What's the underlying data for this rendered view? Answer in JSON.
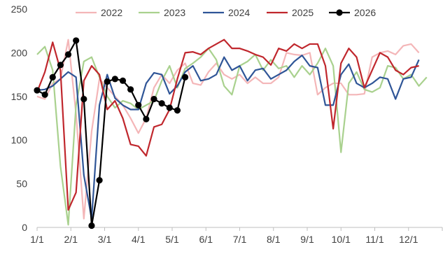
{
  "chart_data": {
    "type": "line",
    "title": "",
    "xlabel": "",
    "ylabel": "",
    "ylim": [
      0,
      250
    ],
    "yticks": [
      "0",
      "50",
      "100",
      "150",
      "200",
      "250"
    ],
    "xticks": [
      "1/1",
      "2/1",
      "3/1",
      "4/1",
      "5/1",
      "6/1",
      "7/1",
      "8/1",
      "9/1",
      "10/1",
      "11/1",
      "12/1"
    ],
    "xmax_week": 52,
    "grid": false,
    "legend": "top",
    "series": [
      {
        "name": "2022",
        "color": "#F4B6B8",
        "marker": false,
        "values": [
          150,
          147,
          165,
          170,
          215,
          130,
          10,
          110,
          170,
          160,
          150,
          140,
          125,
          108,
          125,
          160,
          175,
          165,
          180,
          188,
          165,
          163,
          178,
          188,
          175,
          170,
          175,
          165,
          172,
          165,
          165,
          172,
          200,
          198,
          197,
          200,
          152,
          160,
          165,
          165,
          152,
          152,
          153,
          195,
          200,
          202,
          198,
          208,
          210,
          200
        ]
      },
      {
        "name": "2023",
        "color": "#A9D18E",
        "marker": false,
        "values": [
          198,
          207,
          180,
          70,
          3,
          140,
          190,
          195,
          172,
          150,
          137,
          145,
          142,
          135,
          140,
          145,
          168,
          185,
          160,
          182,
          188,
          195,
          205,
          192,
          162,
          152,
          185,
          190,
          198,
          180,
          192,
          182,
          185,
          172,
          185,
          175,
          188,
          205,
          185,
          86,
          165,
          178,
          158,
          155,
          160,
          185,
          183,
          170,
          175,
          162,
          172
        ]
      },
      {
        "name": "2024",
        "color": "#2F5597",
        "marker": false,
        "values": [
          157,
          158,
          162,
          170,
          178,
          172,
          60,
          10,
          140,
          175,
          148,
          140,
          135,
          135,
          165,
          177,
          175,
          153,
          162,
          178,
          185,
          168,
          170,
          175,
          195,
          180,
          185,
          168,
          180,
          182,
          170,
          175,
          180,
          190,
          197,
          185,
          183,
          140,
          140,
          175,
          187,
          165,
          160,
          165,
          172,
          170,
          147,
          170,
          172,
          192
        ]
      },
      {
        "name": "2025",
        "color": "#C0272D",
        "marker": false,
        "values": [
          155,
          178,
          212,
          180,
          20,
          40,
          168,
          185,
          175,
          135,
          145,
          125,
          95,
          93,
          82,
          115,
          118,
          135,
          170,
          200,
          201,
          198,
          205,
          210,
          215,
          205,
          205,
          202,
          198,
          195,
          186,
          205,
          202,
          210,
          205,
          210,
          210,
          185,
          113,
          188,
          205,
          195,
          160,
          180,
          200,
          195,
          180,
          175,
          183,
          185
        ]
      },
      {
        "name": "2026",
        "color": "#000000",
        "marker": true,
        "values": [
          157,
          152,
          172,
          186,
          198,
          214,
          147,
          2,
          54,
          167,
          170,
          168,
          158,
          140,
          124,
          147,
          142,
          137,
          134,
          172
        ]
      }
    ]
  }
}
